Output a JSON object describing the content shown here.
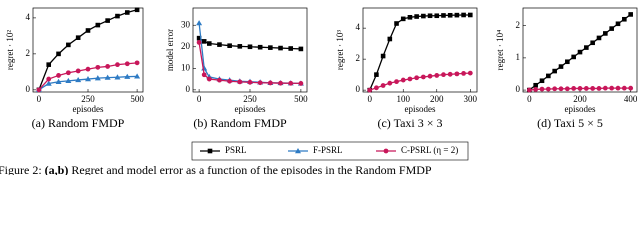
{
  "chart_data": [
    {
      "type": "line",
      "ylabel": "regret · 10²",
      "xlabel": "episodes",
      "caption": "(a) Random FMDP",
      "x": [
        0,
        50,
        100,
        150,
        200,
        250,
        300,
        350,
        400,
        450,
        500
      ],
      "xlim": [
        -30,
        530
      ],
      "xticks": [
        0,
        250,
        500
      ],
      "ylim": [
        -0.12,
        4.55
      ],
      "yticks": [
        0,
        2,
        4
      ],
      "series": [
        {
          "name": "PSRL",
          "color": "#000000",
          "marker": "square",
          "values": [
            0,
            1.4,
            2.0,
            2.5,
            2.9,
            3.3,
            3.6,
            3.85,
            4.1,
            4.3,
            4.45
          ]
        },
        {
          "name": "F-PSRL",
          "color": "#2e7bc4",
          "marker": "triangle",
          "values": [
            0,
            0.35,
            0.45,
            0.5,
            0.55,
            0.6,
            0.65,
            0.68,
            0.7,
            0.73,
            0.75
          ]
        },
        {
          "name": "C-PSRL (η = 2)",
          "color": "#c8175a",
          "marker": "circle",
          "values": [
            0,
            0.6,
            0.8,
            0.95,
            1.05,
            1.15,
            1.25,
            1.3,
            1.4,
            1.45,
            1.5
          ]
        }
      ]
    },
    {
      "type": "line",
      "ylabel": "model error",
      "xlabel": "episodes",
      "caption": "(b) Random FMDP",
      "x": [
        0,
        25,
        50,
        100,
        150,
        200,
        250,
        300,
        350,
        400,
        450,
        500
      ],
      "xlim": [
        -30,
        530
      ],
      "xticks": [
        0,
        250,
        500
      ],
      "ylim": [
        -1,
        38
      ],
      "yticks": [
        0,
        10,
        20,
        30
      ],
      "series": [
        {
          "name": "PSRL",
          "color": "#000000",
          "marker": "square",
          "values": [
            24,
            22.5,
            21.5,
            21,
            20.5,
            20.2,
            20,
            19.8,
            19.6,
            19.4,
            19.2,
            19
          ]
        },
        {
          "name": "F-PSRL",
          "color": "#2e7bc4",
          "marker": "triangle",
          "values": [
            31,
            10,
            6,
            5,
            4.5,
            4,
            3.8,
            3.5,
            3.3,
            3.2,
            3.1,
            3
          ]
        },
        {
          "name": "C-PSRL (η = 2)",
          "color": "#c8175a",
          "marker": "circle",
          "values": [
            22,
            7,
            5,
            4.5,
            4,
            3.7,
            3.5,
            3.3,
            3.2,
            3.1,
            3.05,
            3
          ]
        }
      ]
    },
    {
      "type": "line",
      "ylabel": "regret · 10³",
      "xlabel": "episodes",
      "caption": "(c) Taxi 3 × 3",
      "x": [
        0,
        20,
        40,
        60,
        80,
        100,
        120,
        140,
        160,
        180,
        200,
        220,
        240,
        260,
        280,
        300
      ],
      "xlim": [
        -20,
        320
      ],
      "xticks": [
        0,
        100,
        200,
        300
      ],
      "ylim": [
        -0.12,
        5.3
      ],
      "yticks": [
        0,
        2,
        4
      ],
      "series": [
        {
          "name": "PSRL",
          "color": "#000000",
          "marker": "square",
          "values": [
            0,
            1.0,
            2.2,
            3.3,
            4.3,
            4.6,
            4.7,
            4.75,
            4.78,
            4.8,
            4.8,
            4.82,
            4.83,
            4.84,
            4.85,
            4.85
          ]
        },
        {
          "name": "C-PSRL (η = 2)",
          "color": "#c8175a",
          "marker": "circle",
          "values": [
            0,
            0.15,
            0.3,
            0.45,
            0.55,
            0.65,
            0.72,
            0.8,
            0.85,
            0.9,
            0.95,
            1.0,
            1.02,
            1.05,
            1.08,
            1.1
          ]
        }
      ]
    },
    {
      "type": "line",
      "ylabel": "regret · 10⁴",
      "xlabel": "episodes",
      "caption": "(d) Taxi 5 × 5",
      "x": [
        0,
        25,
        50,
        75,
        100,
        125,
        150,
        175,
        200,
        225,
        250,
        275,
        300,
        325,
        350,
        375,
        400
      ],
      "xlim": [
        -25,
        425
      ],
      "xticks": [
        0,
        200,
        400
      ],
      "ylim": [
        -0.06,
        2.55
      ],
      "yticks": [
        0,
        1,
        2
      ],
      "series": [
        {
          "name": "PSRL",
          "color": "#000000",
          "marker": "square",
          "values": [
            0,
            0.15,
            0.29,
            0.44,
            0.59,
            0.73,
            0.88,
            1.03,
            1.18,
            1.32,
            1.47,
            1.62,
            1.76,
            1.91,
            2.06,
            2.2,
            2.35
          ]
        },
        {
          "name": "C-PSRL (η = 2)",
          "color": "#c8175a",
          "marker": "circle",
          "values": [
            0,
            0.02,
            0.03,
            0.03,
            0.04,
            0.04,
            0.04,
            0.05,
            0.05,
            0.05,
            0.05,
            0.05,
            0.06,
            0.06,
            0.06,
            0.06,
            0.06
          ]
        }
      ]
    }
  ],
  "figure_caption": {
    "label": "Figure 2:",
    "bold": "(a,b)",
    "text": "Regret and model error as a function of the episodes in the Random FMDP"
  }
}
